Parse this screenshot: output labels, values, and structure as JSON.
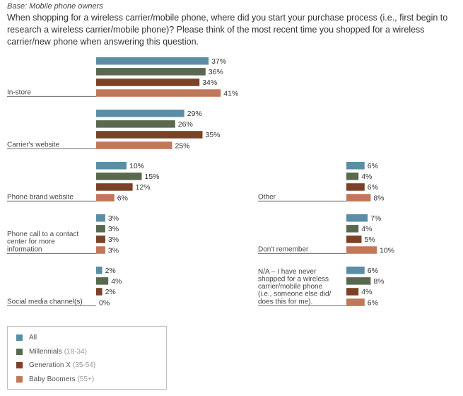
{
  "base_label": "Base: Mobile phone owners",
  "question": "When shopping for a wireless carrier/mobile phone, where did you start your purchase process (i.e., first begin to research a wireless carrier/mobile phone)? Please think of the most recent time you shopped for a wireless carrier/new phone when answering this question.",
  "chart_data": {
    "type": "bar",
    "orientation": "horizontal",
    "title": "",
    "xlabel": "",
    "ylabel": "",
    "value_suffix": "%",
    "series": [
      {
        "name": "All",
        "sublabel": "",
        "color": "#5b8ea6"
      },
      {
        "name": "Millennials",
        "sublabel": "(18-34)",
        "color": "#59694f"
      },
      {
        "name": "Generation X",
        "sublabel": "(35-54)",
        "color": "#7a4227"
      },
      {
        "name": "Baby Boomers",
        "sublabel": "(55+)",
        "color": "#c0785a"
      }
    ],
    "categories": [
      {
        "label": [
          "In-store"
        ],
        "values": [
          37,
          36,
          34,
          41
        ]
      },
      {
        "label": [
          "Carrier's website"
        ],
        "values": [
          29,
          26,
          35,
          25
        ]
      },
      {
        "label": [
          "Phone brand website"
        ],
        "values": [
          10,
          15,
          12,
          6
        ]
      },
      {
        "label": [
          "Phone call to a contact",
          "center for more",
          "information"
        ],
        "values": [
          3,
          3,
          3,
          3
        ]
      },
      {
        "label": [
          "Social media channel(s)"
        ],
        "values": [
          2,
          4,
          2,
          0
        ]
      },
      {
        "label": [
          "Other"
        ],
        "values": [
          6,
          4,
          6,
          8
        ]
      },
      {
        "label": [
          "Don't remember"
        ],
        "values": [
          7,
          4,
          5,
          10
        ]
      },
      {
        "label": [
          "N/A – I have never",
          "shopped for a wireless",
          "carrier/mobile phone",
          "(i.e., someone else did/",
          "does this for me)."
        ],
        "values": [
          6,
          8,
          4,
          6
        ]
      }
    ]
  }
}
